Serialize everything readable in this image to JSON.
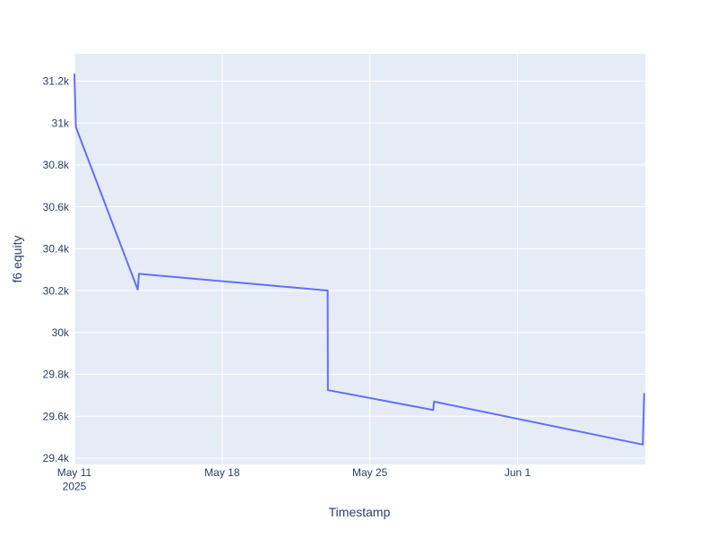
{
  "figure": {
    "kind": "plotly-line-figure",
    "background_color": "#ffffff"
  },
  "chart_data": {
    "type": "line",
    "title": "",
    "xlabel": "Timestamp",
    "ylabel": "f6 equity",
    "line_color": "#636efa",
    "line_width": 2,
    "plot_bg_color": "#e5ecf6",
    "grid_color": "#ffffff",
    "text_color": "#2a3f5f",
    "legend": "none",
    "grid": true,
    "x_unit": "days since 2025-05-11",
    "x_range": [
      0,
      27.05
    ],
    "y_range": [
      29370,
      31330
    ],
    "x_ticks": [
      {
        "day": 0,
        "label": "May 11",
        "sublabel": "2025"
      },
      {
        "day": 7,
        "label": "May 18",
        "sublabel": ""
      },
      {
        "day": 14,
        "label": "May 25",
        "sublabel": ""
      },
      {
        "day": 21,
        "label": "Jun 1",
        "sublabel": ""
      }
    ],
    "y_ticks": [
      {
        "value": 29400,
        "label": "29.4k"
      },
      {
        "value": 29600,
        "label": "29.6k"
      },
      {
        "value": 29800,
        "label": "29.8k"
      },
      {
        "value": 30000,
        "label": "30k"
      },
      {
        "value": 30200,
        "label": "30.2k"
      },
      {
        "value": 30400,
        "label": "30.4k"
      },
      {
        "value": 30600,
        "label": "30.6k"
      },
      {
        "value": 30800,
        "label": "30.8k"
      },
      {
        "value": 31000,
        "label": "31k"
      },
      {
        "value": 31200,
        "label": "31.2k"
      }
    ],
    "series": [
      {
        "name": "f6 equity",
        "points": [
          {
            "date": "2025-05-11",
            "day": 0,
            "value": 31235
          },
          {
            "date": "2025-05-11",
            "day": 0.07,
            "value": 30980
          },
          {
            "date": "2025-05-14",
            "day": 3,
            "value": 30205
          },
          {
            "date": "2025-05-14",
            "day": 3.06,
            "value": 30280
          },
          {
            "date": "2025-05-23",
            "day": 12,
            "value": 30200
          },
          {
            "date": "2025-05-23",
            "day": 12.01,
            "value": 29725
          },
          {
            "date": "2025-05-28",
            "day": 17,
            "value": 29630
          },
          {
            "date": "2025-05-28",
            "day": 17.04,
            "value": 29670
          },
          {
            "date": "2025-06-07",
            "day": 26.93,
            "value": 29465
          },
          {
            "date": "2025-06-07",
            "day": 27,
            "value": 29710
          }
        ]
      }
    ]
  }
}
